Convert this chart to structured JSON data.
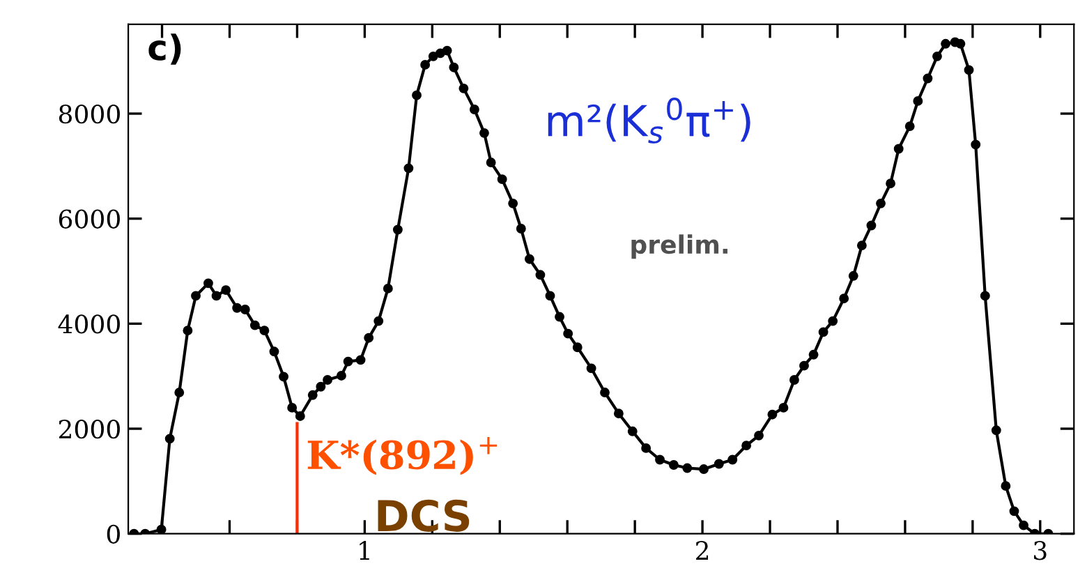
{
  "chart_data": {
    "type": "line",
    "marker": "circle",
    "line_style": "solid",
    "grid": false,
    "legend": false,
    "xlim": [
      0.3,
      3.1
    ],
    "ylim": [
      0,
      9700
    ],
    "xticks": [
      {
        "value": 0.4,
        "label": null
      },
      {
        "value": 0.6,
        "label": null
      },
      {
        "value": 0.8,
        "label": null
      },
      1,
      {
        "value": 1.2,
        "label": null
      },
      {
        "value": 1.4,
        "label": null
      },
      {
        "value": 1.6,
        "label": null
      },
      {
        "value": 1.8,
        "label": null
      },
      2,
      {
        "value": 2.2,
        "label": null
      },
      {
        "value": 2.4,
        "label": null
      },
      {
        "value": 2.6,
        "label": null
      },
      {
        "value": 2.8,
        "label": null
      },
      3
    ],
    "yticks": [
      0,
      2000,
      4000,
      6000,
      8000
    ],
    "annotations": [
      "c)",
      "m²(K$_{s}$$^{0}$π$^{+}$)",
      "prelim.",
      {
        "text": "K*(892)$^{+}$",
        "x": 0.8,
        "y": 2100
      },
      "DCS"
    ],
    "series": [
      {
        "color": "#000000",
        "x": [
          0.317,
          0.35,
          0.398,
          0.423,
          0.451,
          0.476,
          0.5,
          0.537,
          0.561,
          0.589,
          0.622,
          0.646,
          0.675,
          0.703,
          0.732,
          0.76,
          0.785,
          0.809,
          0.846,
          0.87,
          0.89,
          0.931,
          0.951,
          0.988,
          1.012,
          1.041,
          1.069,
          1.098,
          1.13,
          1.154,
          1.179,
          1.203,
          1.224,
          1.244,
          1.264,
          1.293,
          1.325,
          1.354,
          1.374,
          1.407,
          1.439,
          1.463,
          1.488,
          1.52,
          1.549,
          1.577,
          1.602,
          1.63,
          1.671,
          1.711,
          1.752,
          1.793,
          1.833,
          1.874,
          1.915,
          1.955,
          2.004,
          2.049,
          2.089,
          2.13,
          2.167,
          2.207,
          2.24,
          2.272,
          2.301,
          2.329,
          2.358,
          2.386,
          2.419,
          2.447,
          2.472,
          2.5,
          2.528,
          2.557,
          2.581,
          2.614,
          2.638,
          2.667,
          2.695,
          2.72,
          2.748,
          2.764,
          2.789,
          2.809,
          2.837,
          2.87,
          2.898,
          2.923,
          2.951,
          2.984,
          3.024
        ],
        "values": [
          0,
          0,
          80,
          1810,
          2690,
          3870,
          4530,
          4770,
          4530,
          4640,
          4300,
          4270,
          3970,
          3870,
          3470,
          2990,
          2400,
          2240,
          2640,
          2800,
          2930,
          3010,
          3280,
          3310,
          3730,
          4050,
          4670,
          5790,
          6960,
          8350,
          8930,
          9090,
          9150,
          9200,
          8880,
          8480,
          8080,
          7630,
          7070,
          6750,
          6290,
          5810,
          5230,
          4930,
          4530,
          4130,
          3810,
          3550,
          3150,
          2690,
          2290,
          1950,
          1630,
          1410,
          1310,
          1250,
          1230,
          1330,
          1410,
          1680,
          1870,
          2270,
          2400,
          2930,
          3200,
          3410,
          3840,
          4050,
          4480,
          4910,
          5490,
          5870,
          6290,
          6670,
          7330,
          7760,
          8240,
          8670,
          9090,
          9330,
          9360,
          9330,
          8830,
          7410,
          4530,
          1970,
          910,
          430,
          160,
          0,
          0
        ]
      }
    ]
  }
}
